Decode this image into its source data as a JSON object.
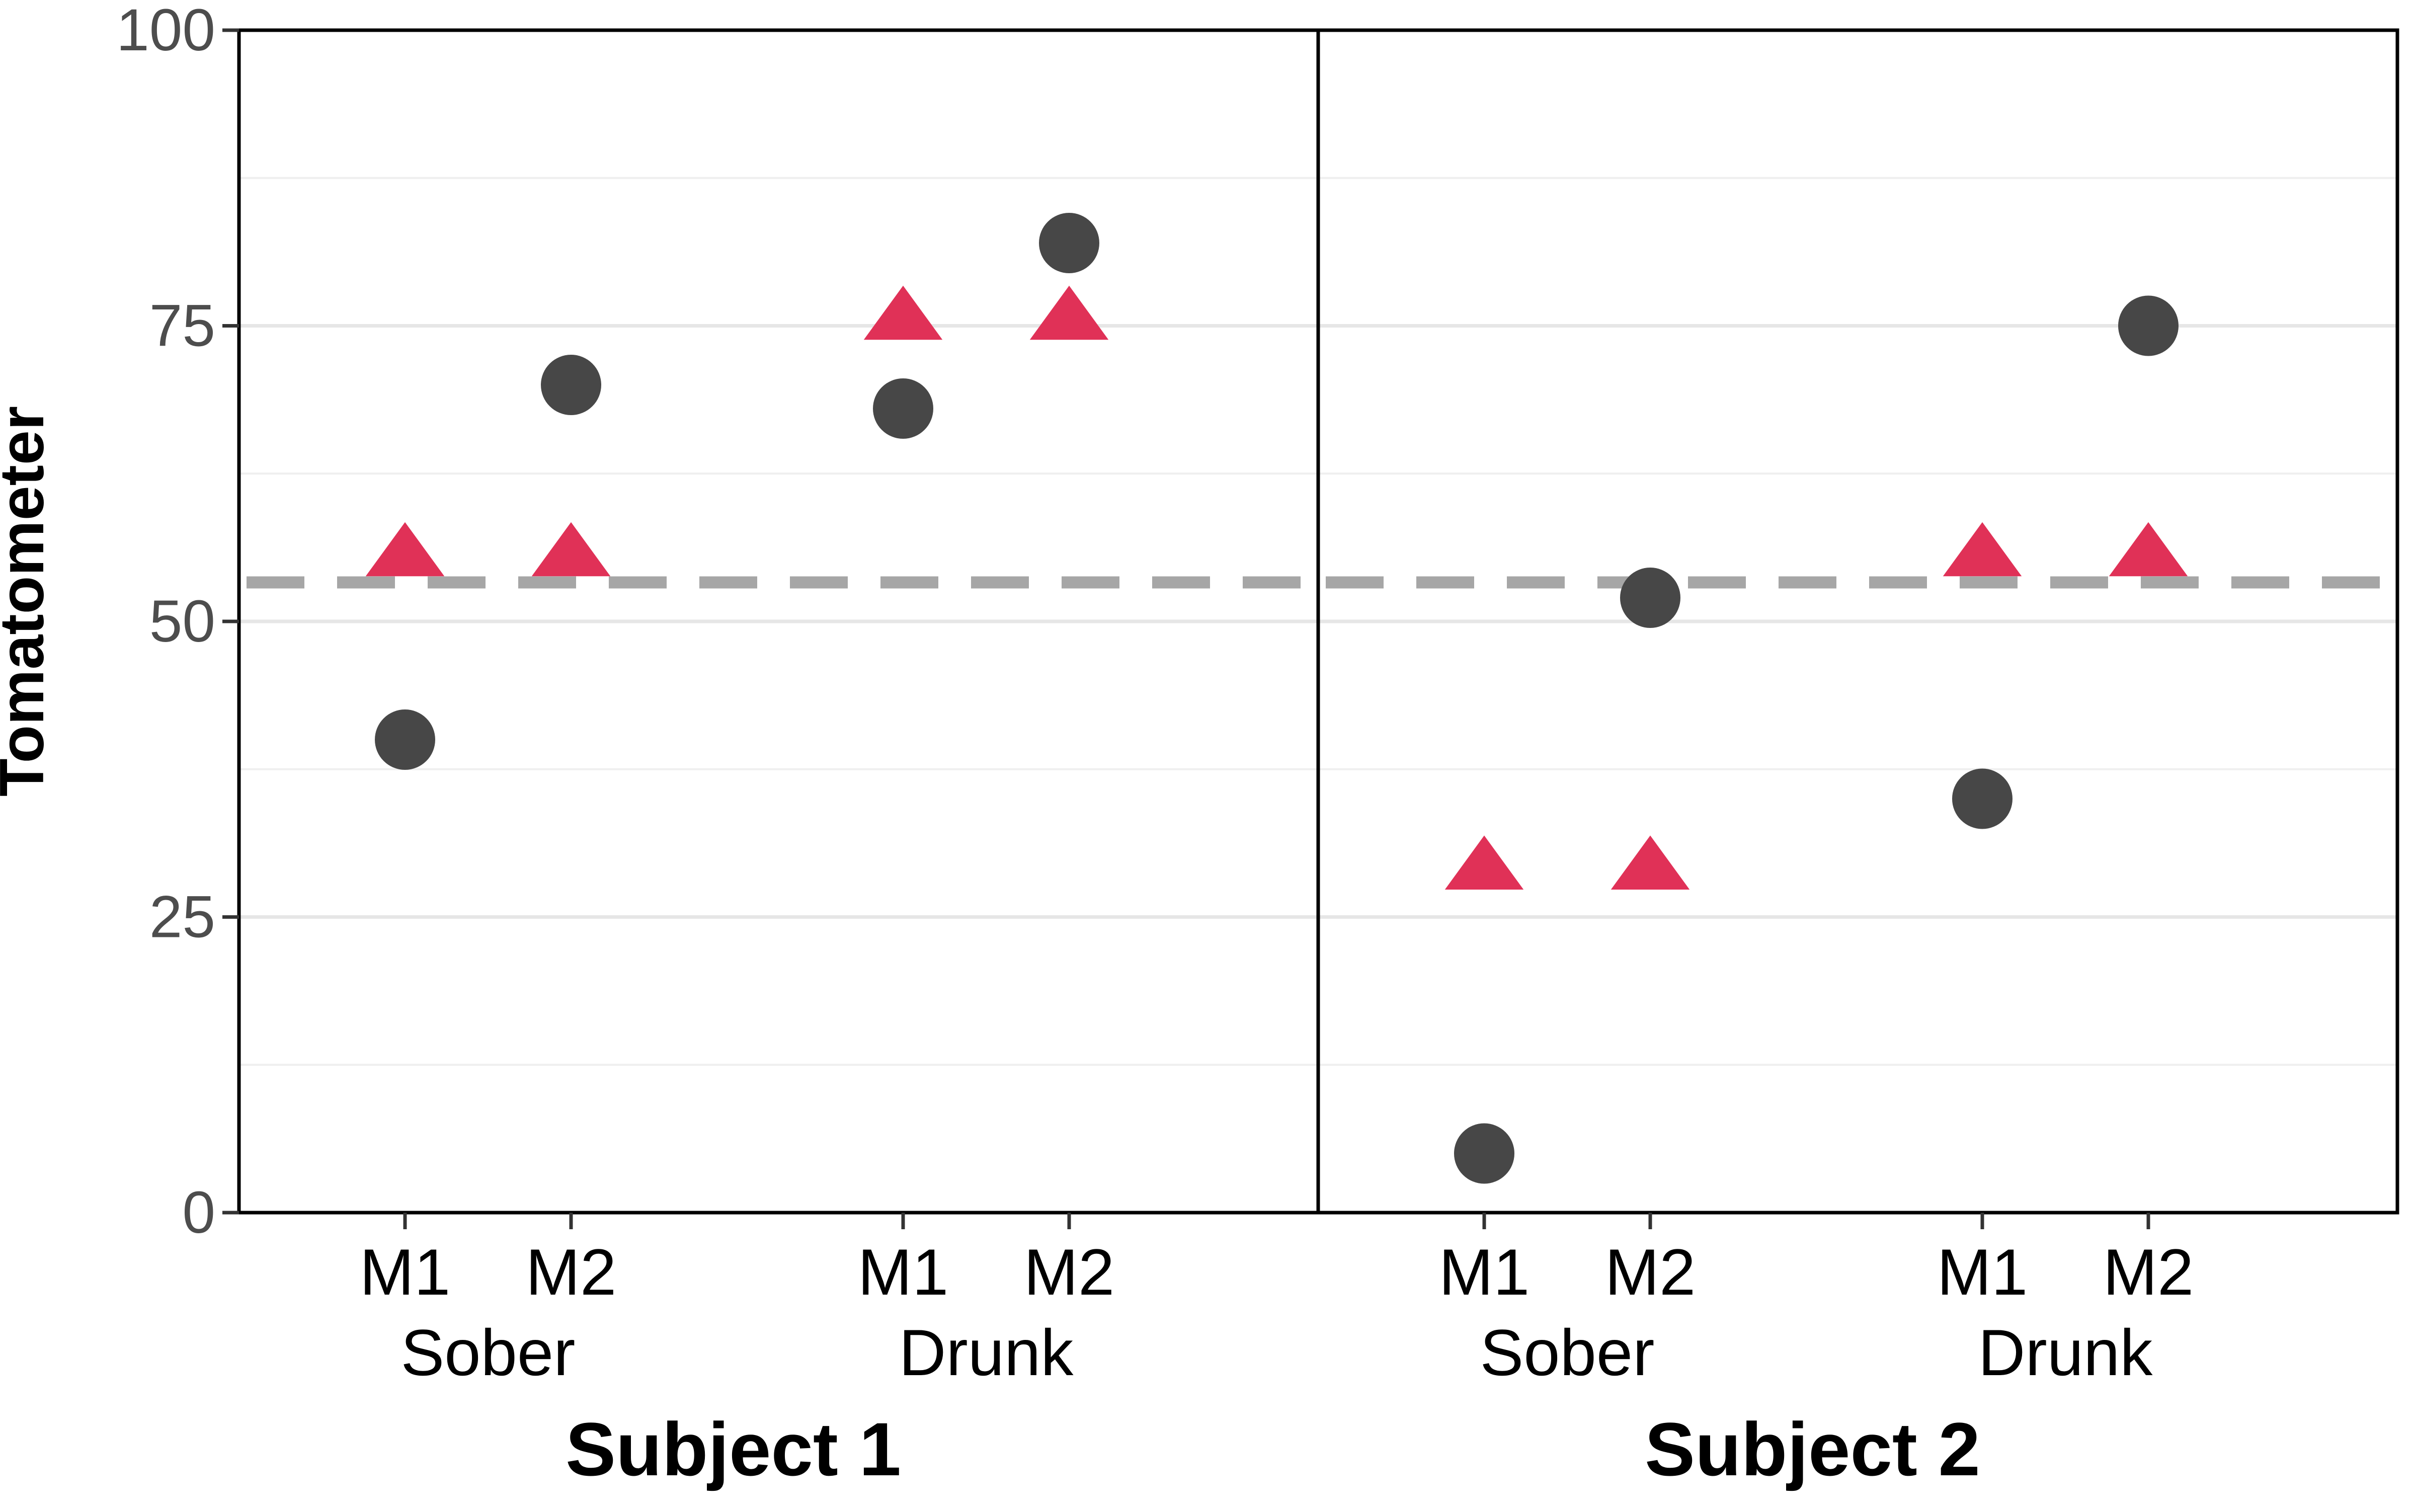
{
  "chart_data": {
    "type": "scatter",
    "title": "",
    "ylabel": "Tomatometer",
    "ylim": [
      0,
      100
    ],
    "yticks": [
      0,
      25,
      50,
      75,
      100
    ],
    "grid": true,
    "reference_line": {
      "y": 53.3,
      "style": "dashed",
      "color": "#A6A6A6"
    },
    "series_styles": [
      {
        "shape": "circle",
        "color": "#474747"
      },
      {
        "shape": "triangle",
        "color": "#E03157"
      }
    ],
    "panels": [
      {
        "label": "Subject 1",
        "groups": [
          {
            "label": "Sober",
            "categories": [
              {
                "label": "M1",
                "circle": 40,
                "triangle": 55.5
              },
              {
                "label": "M2",
                "circle": 70,
                "triangle": 55.5
              }
            ]
          },
          {
            "label": "Drunk",
            "categories": [
              {
                "label": "M1",
                "circle": 68,
                "triangle": 75.5
              },
              {
                "label": "M2",
                "circle": 82,
                "triangle": 75.5
              }
            ]
          }
        ]
      },
      {
        "label": "Subject 2",
        "groups": [
          {
            "label": "Sober",
            "categories": [
              {
                "label": "M1",
                "circle": 5,
                "triangle": 29
              },
              {
                "label": "M2",
                "circle": 52,
                "triangle": 29
              }
            ]
          },
          {
            "label": "Drunk",
            "categories": [
              {
                "label": "M1",
                "circle": 35,
                "triangle": 55.5
              },
              {
                "label": "M2",
                "circle": 75,
                "triangle": 55.5
              }
            ]
          }
        ]
      }
    ]
  }
}
